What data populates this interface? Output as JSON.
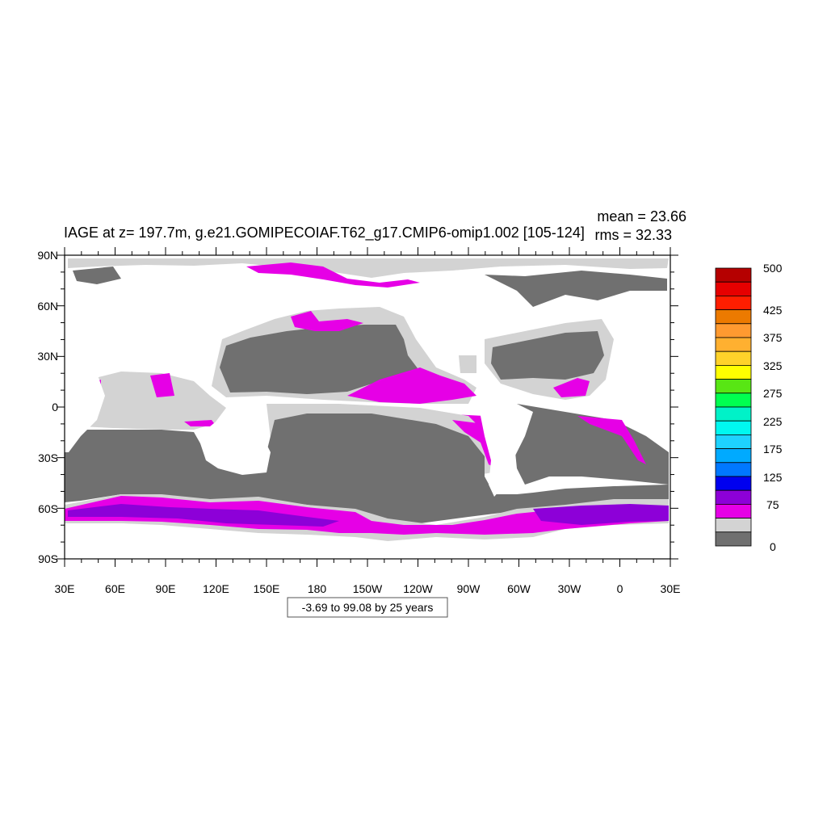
{
  "title": "IAGE at z= 197.7m, g.e21.GOMIPECOIAF.T62_g17.CMIP6-omip1.002 [105-124]",
  "stats": {
    "mean": "mean = 23.66",
    "rms": "rms = 32.33"
  },
  "caption": "-3.69 to 99.08 by 25 years",
  "lat_labels": [
    "90N",
    "60N",
    "30N",
    "0",
    "30S",
    "60S",
    "90S"
  ],
  "lon_labels": [
    "30E",
    "60E",
    "90E",
    "120E",
    "150E",
    "180",
    "150W",
    "120W",
    "90W",
    "60W",
    "30W",
    "0",
    "30E"
  ],
  "colorbar": {
    "colors_top_to_bottom": [
      "#b50000",
      "#e60000",
      "#ff1e00",
      "#ec7a00",
      "#ff9a30",
      "#ffb030",
      "#ffd22a",
      "#ffff00",
      "#58e614",
      "#00ff50",
      "#00f2c8",
      "#00f8f0",
      "#1ed2ff",
      "#00aaff",
      "#0078ff",
      "#0000ef",
      "#8d00d8",
      "#e600e6",
      "#d3d3d3",
      "#707070"
    ],
    "labels": [
      "500",
      "425",
      "375",
      "325",
      "275",
      "225",
      "175",
      "125",
      "75",
      "0"
    ]
  },
  "map_colors": {
    "land": "#ffffff",
    "young": "#707070",
    "mid": "#d3d3d3",
    "old": "#e600e6",
    "older": "#8d00d8"
  }
}
